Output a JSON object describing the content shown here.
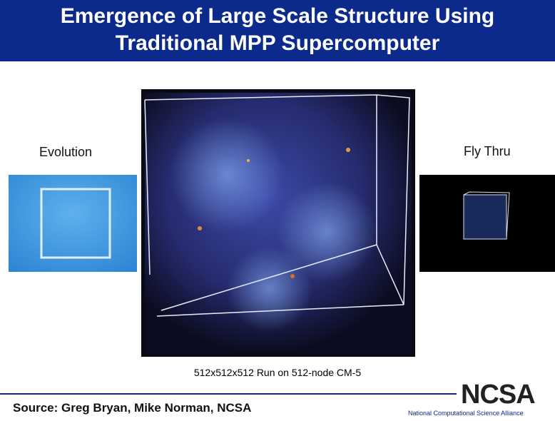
{
  "header": {
    "title_lines": [
      "Emergence of Large Scale Structure Using",
      "Traditional MPP Supercomputer"
    ]
  },
  "panels": {
    "left_label": "Evolution",
    "right_label": "Fly Thru",
    "caption": "512x512x512 Run on 512-node CM-5"
  },
  "footer": {
    "source": "Source:  Greg Bryan, Mike Norman, NCSA",
    "logo": "NCSA",
    "tagline": "National Computational Science Alliance"
  }
}
